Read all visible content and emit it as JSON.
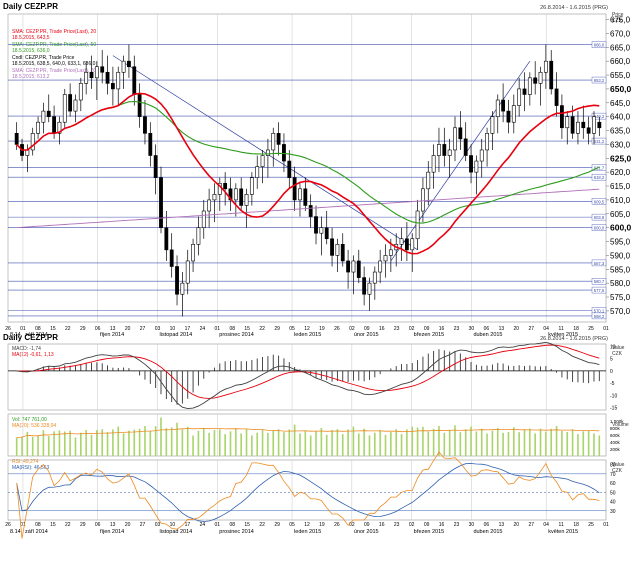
{
  "header": {
    "title": "Daily CEZP.PR",
    "date_range": "26.8.2014 - 1.6.2015 (PRG)"
  },
  "colors": {
    "price": "#000000",
    "sma20": "#e8000f",
    "sma50": "#2c9b1a",
    "sma200": "#b070b8",
    "trendline": "#3040a0",
    "hline": "#4050b0",
    "volume": "#a8d468",
    "volume_ma": "#ee8a20",
    "rsi": "#ee8a20",
    "rsi_ma": "#3060b0",
    "macd": "#404040",
    "macd_signal": "#e8000f"
  },
  "legend": {
    "sma20_title": "SMA: CEZP.PR, Trade Price(Last), 20",
    "sma20_value": "18.5.2015, 643,5",
    "sma50_title": "SMA: CEZP.PR, Trade Price(Last), 50",
    "sma50_value": "18.5.2015, 636,0",
    "price_title": "Cndl: CEZP.PR, Trade Price",
    "price_value": "18.5.2015, 638,5, 640,0, 633,1, 636,0",
    "sma200_title": "SMA: CEZP.PR, Trade Price(Last), 200",
    "sma200_value": "18.5.2015, 613,2"
  },
  "chart_data": [
    {
      "type": "candlestick",
      "panel": "price",
      "ylim": [
        566,
        677
      ],
      "y_axis_title": "Price",
      "y_axis_unit": "CZK",
      "yticks": [
        570,
        575,
        580,
        585,
        590,
        595,
        600,
        605,
        610,
        615,
        620,
        625,
        630,
        635,
        640,
        645,
        650,
        655,
        660,
        665,
        670,
        675
      ],
      "ytick_labels": [
        "570,0",
        "575,0",
        "580,0",
        "585,0",
        "590,0",
        "595,0",
        "600,0",
        "605,0",
        "610,0",
        "615,0",
        "620,0",
        "625,0",
        "630,0",
        "635,0",
        "640,0",
        "645,0",
        "650,0",
        "655,0",
        "660,0",
        "665,0",
        "670,0",
        "675,0"
      ],
      "bold_ticks": [
        600,
        625,
        650
      ],
      "horizontal_levels": [
        {
          "value": 666.0,
          "label": "666,0"
        },
        {
          "value": 653.2,
          "label": "653,2"
        },
        {
          "value": 640.2,
          "label": "640,2"
        },
        {
          "value": 631.2,
          "label": "631,2"
        },
        {
          "value": 621.7,
          "label": "621,7"
        },
        {
          "value": 618.2,
          "label": "618,2"
        },
        {
          "value": 609.5,
          "label": "609,5"
        },
        {
          "value": 603.8,
          "label": "603,8"
        },
        {
          "value": 600.0,
          "label": "600,0"
        },
        {
          "value": 587.3,
          "label": "587,3"
        },
        {
          "value": 580.7,
          "label": "580,7"
        },
        {
          "value": 577.5,
          "label": "577,5"
        },
        {
          "value": 570.1,
          "label": "570,1"
        },
        {
          "value": 568.2,
          "label": "568,2"
        }
      ],
      "candles": [
        [
          634,
          638,
          628,
          630
        ],
        [
          630,
          632,
          624,
          626
        ],
        [
          626,
          630,
          620,
          628
        ],
        [
          628,
          636,
          626,
          634
        ],
        [
          634,
          640,
          632,
          638
        ],
        [
          638,
          645,
          634,
          642
        ],
        [
          642,
          648,
          638,
          640
        ],
        [
          640,
          644,
          632,
          634
        ],
        [
          634,
          640,
          630,
          638
        ],
        [
          638,
          650,
          636,
          648
        ],
        [
          648,
          652,
          640,
          642
        ],
        [
          642,
          648,
          638,
          646
        ],
        [
          646,
          654,
          642,
          652
        ],
        [
          652,
          660,
          648,
          656
        ],
        [
          656,
          662,
          650,
          654
        ],
        [
          654,
          660,
          646,
          658
        ],
        [
          658,
          664,
          652,
          656
        ],
        [
          656,
          662,
          648,
          652
        ],
        [
          652,
          658,
          644,
          650
        ],
        [
          650,
          658,
          644,
          656
        ],
        [
          656,
          662,
          650,
          660
        ],
        [
          660,
          666,
          654,
          658
        ],
        [
          658,
          662,
          644,
          648
        ],
        [
          648,
          652,
          636,
          640
        ],
        [
          640,
          646,
          630,
          634
        ],
        [
          634,
          638,
          622,
          626
        ],
        [
          626,
          630,
          612,
          618
        ],
        [
          618,
          622,
          598,
          600
        ],
        [
          600,
          606,
          588,
          592
        ],
        [
          592,
          598,
          582,
          586
        ],
        [
          586,
          590,
          572,
          576
        ],
        [
          576,
          584,
          568,
          580
        ],
        [
          580,
          592,
          576,
          588
        ],
        [
          588,
          596,
          584,
          594
        ],
        [
          594,
          604,
          590,
          600
        ],
        [
          600,
          610,
          596,
          606
        ],
        [
          606,
          614,
          600,
          610
        ],
        [
          610,
          616,
          602,
          612
        ],
        [
          612,
          618,
          606,
          616
        ],
        [
          616,
          620,
          608,
          614
        ],
        [
          614,
          618,
          606,
          610
        ],
        [
          610,
          616,
          604,
          614
        ],
        [
          614,
          618,
          606,
          608
        ],
        [
          608,
          614,
          600,
          612
        ],
        [
          612,
          620,
          608,
          618
        ],
        [
          618,
          626,
          614,
          622
        ],
        [
          622,
          628,
          616,
          626
        ],
        [
          626,
          632,
          618,
          628
        ],
        [
          628,
          636,
          622,
          634
        ],
        [
          634,
          638,
          626,
          630
        ],
        [
          630,
          634,
          620,
          624
        ],
        [
          624,
          628,
          614,
          618
        ],
        [
          618,
          622,
          606,
          610
        ],
        [
          610,
          616,
          604,
          614
        ],
        [
          614,
          618,
          606,
          608
        ],
        [
          608,
          612,
          600,
          604
        ],
        [
          604,
          608,
          594,
          598
        ],
        [
          598,
          604,
          590,
          600
        ],
        [
          600,
          606,
          594,
          596
        ],
        [
          596,
          600,
          586,
          590
        ],
        [
          590,
          596,
          584,
          594
        ],
        [
          594,
          598,
          586,
          588
        ],
        [
          588,
          592,
          578,
          584
        ],
        [
          584,
          590,
          576,
          588
        ],
        [
          588,
          592,
          580,
          582
        ],
        [
          582,
          586,
          572,
          576
        ],
        [
          576,
          582,
          570,
          580
        ],
        [
          580,
          586,
          574,
          584
        ],
        [
          584,
          592,
          580,
          588
        ],
        [
          588,
          594,
          582,
          590
        ],
        [
          590,
          596,
          584,
          592
        ],
        [
          592,
          598,
          586,
          594
        ],
        [
          594,
          600,
          588,
          596
        ],
        [
          596,
          602,
          588,
          592
        ],
        [
          592,
          598,
          584,
          596
        ],
        [
          596,
          610,
          592,
          606
        ],
        [
          606,
          618,
          602,
          614
        ],
        [
          614,
          624,
          608,
          620
        ],
        [
          620,
          630,
          614,
          626
        ],
        [
          626,
          636,
          620,
          630
        ],
        [
          630,
          636,
          622,
          626
        ],
        [
          626,
          632,
          618,
          628
        ],
        [
          628,
          640,
          624,
          636
        ],
        [
          636,
          642,
          628,
          632
        ],
        [
          632,
          638,
          624,
          626
        ],
        [
          626,
          630,
          616,
          620
        ],
        [
          620,
          626,
          612,
          624
        ],
        [
          624,
          632,
          618,
          628
        ],
        [
          628,
          636,
          622,
          634
        ],
        [
          634,
          642,
          628,
          640
        ],
        [
          640,
          648,
          634,
          646
        ],
        [
          646,
          652,
          638,
          642
        ],
        [
          642,
          646,
          634,
          638
        ],
        [
          638,
          648,
          634,
          644
        ],
        [
          644,
          654,
          640,
          650
        ],
        [
          650,
          656,
          642,
          648
        ],
        [
          648,
          656,
          644,
          654
        ],
        [
          654,
          660,
          648,
          652
        ],
        [
          652,
          658,
          644,
          656
        ],
        [
          656,
          666,
          650,
          660
        ],
        [
          660,
          664,
          648,
          650
        ],
        [
          650,
          656,
          640,
          644
        ],
        [
          644,
          648,
          632,
          636
        ],
        [
          636,
          642,
          630,
          640
        ],
        [
          640,
          644,
          632,
          634
        ],
        [
          634,
          642,
          630,
          638
        ],
        [
          638,
          644,
          632,
          636
        ],
        [
          636,
          640,
          630,
          634
        ],
        [
          634,
          642,
          630,
          640
        ],
        [
          638,
          640,
          633,
          636
        ]
      ]
    },
    {
      "type": "line",
      "panel": "macd",
      "title": "MACD: -1,74",
      "signal_label": "MA(12) -0,61, 1,13",
      "y_axis_title": "Value",
      "y_axis_unit": "CZK",
      "ylim": [
        -16,
        11
      ],
      "yticks": [
        10,
        5,
        0,
        -5,
        -10,
        -15
      ],
      "ytick_labels": [
        "10",
        "5",
        "0",
        "-5",
        "-10",
        "-15"
      ]
    },
    {
      "type": "bar",
      "panel": "volume",
      "title": "Vol: 747 761,00",
      "ma_label": "MA(20): 536 328,04",
      "y_axis_title": "Volume",
      "ylim": [
        0,
        1200
      ],
      "yticks": [
        1000,
        800,
        600,
        400,
        200
      ],
      "ytick_labels": [
        "1 000k",
        "800k",
        "600k",
        "400k",
        "200k"
      ]
    },
    {
      "type": "line",
      "panel": "rsi",
      "title": "RSI: 49,274",
      "ma_label": "MA(RSI): 46,563",
      "y_axis_title": "Value",
      "y_axis_unit": "CZK",
      "ylim": [
        20,
        85
      ],
      "yticks": [
        80,
        70,
        60,
        50,
        40,
        30
      ],
      "ytick_labels": [
        "80",
        "70",
        "60",
        "50",
        "40",
        "30"
      ]
    }
  ],
  "x_axis": {
    "day_ticks": [
      "26",
      "01",
      "08",
      "15",
      "22",
      "29",
      "06",
      "13",
      "20",
      "27",
      "03",
      "10",
      "17",
      "24",
      "01",
      "08",
      "15",
      "22",
      "29",
      "05",
      "12",
      "19",
      "26",
      "02",
      "09",
      "16",
      "23",
      "02",
      "09",
      "16",
      "23",
      "30",
      "06",
      "13",
      "20",
      "27",
      "04",
      "11",
      "18",
      "25",
      "01"
    ],
    "months": [
      {
        "label": "8.14",
        "index": 0
      },
      {
        "label": "září 2014",
        "index": 1
      },
      {
        "label": "říjen 2014",
        "index": 6
      },
      {
        "label": "listopad 2014",
        "index": 10
      },
      {
        "label": "prosinec 2014",
        "index": 14
      },
      {
        "label": "leden 2015",
        "index": 19
      },
      {
        "label": "únor 2015",
        "index": 23
      },
      {
        "label": "březen 2015",
        "index": 27
      },
      {
        "label": "duben 2015",
        "index": 31
      },
      {
        "label": "květen 2015",
        "index": 36
      }
    ]
  },
  "lower_header": {
    "title": "Daily CEZP.PR",
    "date_range": "26.8.2014 - 1.6.2015 (PRG)"
  }
}
